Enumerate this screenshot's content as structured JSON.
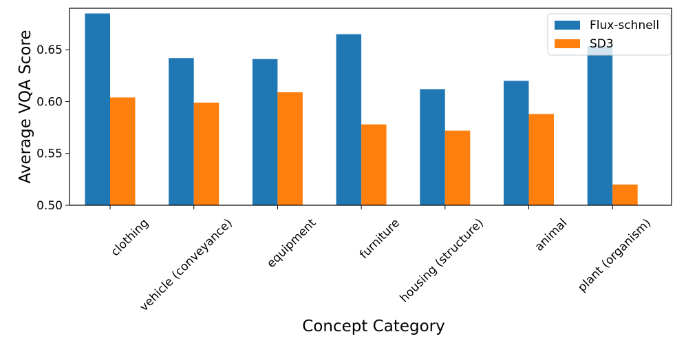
{
  "chart_data": {
    "type": "bar",
    "title": "",
    "xlabel": "Concept Category",
    "ylabel": "Average VQA Score",
    "ylim": [
      0.5,
      0.69
    ],
    "yticks": [
      "0.50",
      "0.55",
      "0.60",
      "0.65"
    ],
    "categories": [
      "clothing",
      "vehicle (conveyance)",
      "equipment",
      "furniture",
      "housing (structure)",
      "animal",
      "plant (organism)"
    ],
    "series": [
      {
        "name": "Flux-schnell",
        "color": "#1f77b4",
        "values": [
          0.685,
          0.642,
          0.641,
          0.665,
          0.612,
          0.62,
          0.654
        ]
      },
      {
        "name": "SD3",
        "color": "#ff7f0e",
        "values": [
          0.604,
          0.599,
          0.609,
          0.578,
          0.572,
          0.588,
          0.52
        ]
      }
    ],
    "grid": false,
    "legend_position": "top-right"
  }
}
